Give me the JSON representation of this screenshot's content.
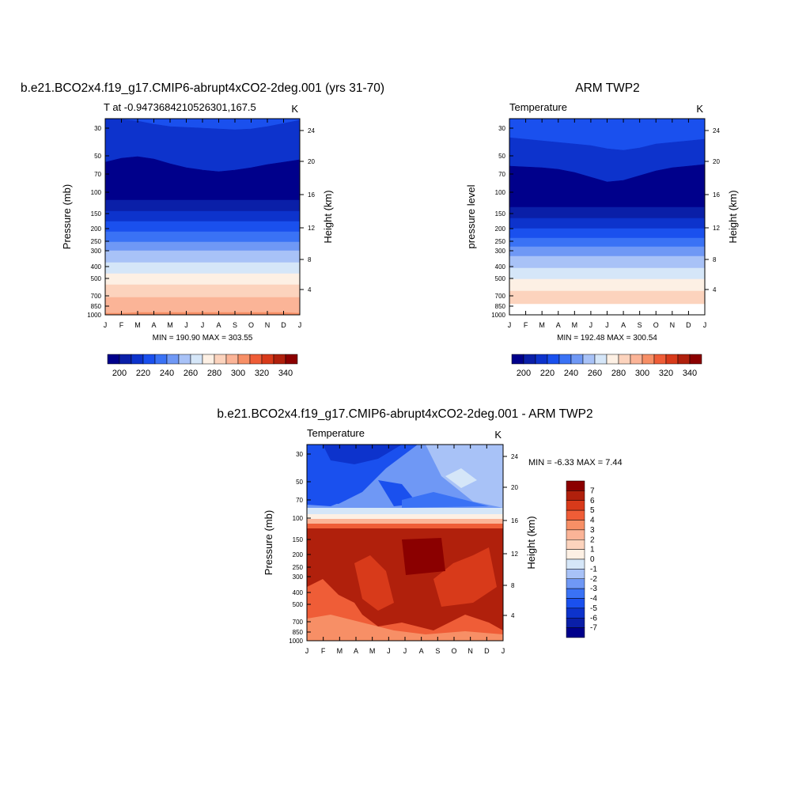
{
  "colors": {
    "temp_levels": [
      "#00008b",
      "#0a1fa8",
      "#0d33cc",
      "#1a50ee",
      "#3a72f5",
      "#6f98f5",
      "#a8c2f7",
      "#d5e6f8",
      "#fdf0e4",
      "#fcd3bd",
      "#fbb497",
      "#f78f66",
      "#ef5d37",
      "#d83a1a",
      "#b0200c",
      "#8b0000"
    ],
    "diff_levels": [
      "#00008b",
      "#0a1fa8",
      "#0d33cc",
      "#1a50ee",
      "#3a72f5",
      "#6f98f5",
      "#a8c2f7",
      "#d5e6f8",
      "#fdf0e4",
      "#fcd3bd",
      "#fbb497",
      "#f78f66",
      "#ef5d37",
      "#d83a1a",
      "#b0200c",
      "#8b0000"
    ]
  },
  "chart_data": [
    {
      "type": "heatmap",
      "title": "b.e21.BCO2x4.f19_g17.CMIP6-abrupt4xCO2-2deg.001 (yrs 31-70)",
      "subtitle_left": "T at -0.9473684210526301,167.5",
      "subtitle_right": "K",
      "ylabel": "Pressure (mb)",
      "ylabel_right": "Height (km)",
      "x": [
        "J",
        "F",
        "M",
        "A",
        "M",
        "J",
        "J",
        "A",
        "S",
        "O",
        "N",
        "D",
        "J"
      ],
      "y_ticks": [
        "30",
        "50",
        "70",
        "100",
        "150",
        "200",
        "250",
        "300",
        "400",
        "500",
        "700",
        "850",
        "1000"
      ],
      "y_ticks_right": [
        "24",
        "20",
        "16",
        "12",
        "8",
        "4"
      ],
      "stats": "MIN = 190.90 MAX = 303.55",
      "colorbar_labels": [
        "200",
        "220",
        "240",
        "260",
        "280",
        "300",
        "320",
        "340"
      ]
    },
    {
      "type": "heatmap",
      "title": "ARM TWP2",
      "subtitle_left": "Temperature",
      "subtitle_right": "K",
      "ylabel": "pressure level",
      "ylabel_right": "Height (km)",
      "x": [
        "J",
        "F",
        "M",
        "A",
        "M",
        "J",
        "J",
        "A",
        "S",
        "O",
        "N",
        "D",
        "J"
      ],
      "y_ticks": [
        "30",
        "50",
        "70",
        "100",
        "150",
        "200",
        "250",
        "300",
        "400",
        "500",
        "700",
        "850",
        "1000"
      ],
      "y_ticks_right": [
        "24",
        "20",
        "16",
        "12",
        "8",
        "4"
      ],
      "stats": "MIN = 192.48 MAX = 300.54",
      "colorbar_labels": [
        "200",
        "220",
        "240",
        "260",
        "280",
        "300",
        "320",
        "340"
      ]
    },
    {
      "type": "heatmap",
      "title": "b.e21.BCO2x4.f19_g17.CMIP6-abrupt4xCO2-2deg.001 - ARM TWP2",
      "subtitle_left": "Temperature",
      "subtitle_right": "K",
      "ylabel": "Pressure (mb)",
      "ylabel_right": "Height (km)",
      "x": [
        "J",
        "F",
        "M",
        "A",
        "M",
        "J",
        "J",
        "A",
        "S",
        "O",
        "N",
        "D",
        "J"
      ],
      "y_ticks": [
        "30",
        "50",
        "70",
        "100",
        "150",
        "200",
        "250",
        "300",
        "400",
        "500",
        "700",
        "850",
        "1000"
      ],
      "y_ticks_right": [
        "24",
        "20",
        "16",
        "12",
        "8",
        "4"
      ],
      "stats": "MIN =  -6.33 MAX =   7.44",
      "colorbar_labels": [
        "7",
        "6",
        "5",
        "4",
        "3",
        "2",
        "1",
        "0",
        "-1",
        "-2",
        "-3",
        "-4",
        "-5",
        "-6",
        "-7"
      ]
    }
  ]
}
